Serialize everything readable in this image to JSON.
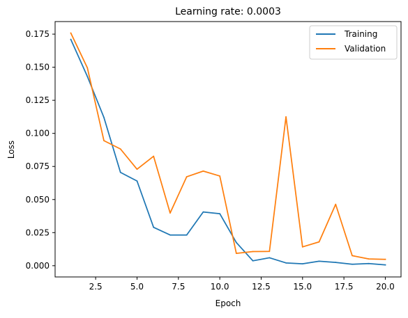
{
  "chart_data": {
    "type": "line",
    "title": "Learning rate: 0.0003",
    "xlabel": "Epoch",
    "ylabel": "Loss",
    "xlim": [
      0.05,
      20.95
    ],
    "ylim": [
      -0.0085,
      0.1845
    ],
    "grid": false,
    "legend_position": "top-right",
    "x": [
      1,
      2,
      3,
      4,
      5,
      6,
      7,
      8,
      9,
      10,
      11,
      12,
      13,
      14,
      15,
      16,
      17,
      18,
      19,
      20
    ],
    "x_ticks": [
      2.5,
      5.0,
      7.5,
      10.0,
      12.5,
      15.0,
      17.5,
      20.0
    ],
    "x_tick_labels": [
      "2.5",
      "5.0",
      "7.5",
      "10.0",
      "12.5",
      "15.0",
      "17.5",
      "20.0"
    ],
    "y_ticks": [
      0.0,
      0.025,
      0.05,
      0.075,
      0.1,
      0.125,
      0.15,
      0.175
    ],
    "y_tick_labels": [
      "0.000",
      "0.025",
      "0.050",
      "0.075",
      "0.100",
      "0.125",
      "0.150",
      "0.175"
    ],
    "series": [
      {
        "name": "Training",
        "color": "#1f77b4",
        "values": [
          0.171,
          0.143,
          0.112,
          0.0705,
          0.064,
          0.029,
          0.0232,
          0.0232,
          0.0406,
          0.0393,
          0.0175,
          0.0037,
          0.006,
          0.0021,
          0.0014,
          0.0034,
          0.0025,
          0.0011,
          0.0016,
          0.0006
        ]
      },
      {
        "name": "Validation",
        "color": "#ff7f0e",
        "values": [
          0.1758,
          0.1495,
          0.0945,
          0.0882,
          0.0729,
          0.0827,
          0.0398,
          0.0672,
          0.0715,
          0.0678,
          0.0093,
          0.0107,
          0.0108,
          0.1125,
          0.0142,
          0.018,
          0.0464,
          0.0076,
          0.0051,
          0.0048
        ]
      }
    ]
  }
}
